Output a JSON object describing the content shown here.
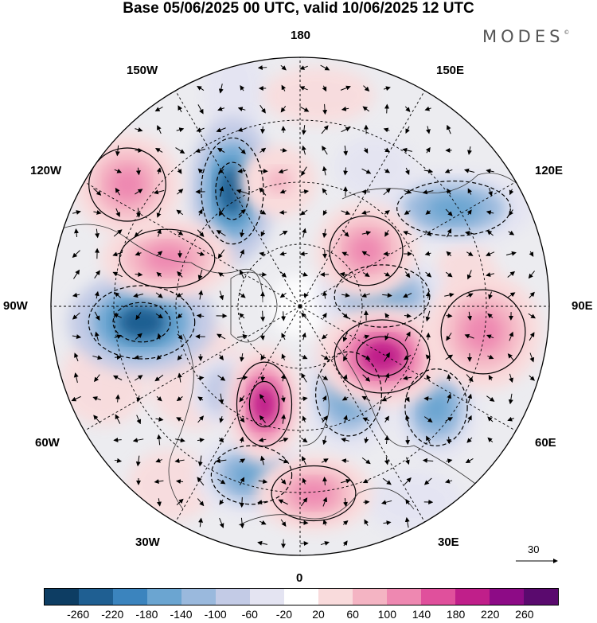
{
  "title": "Base 05/06/2025 00 UTC, valid 10/06/2025 12 UTC",
  "brand": "MODES",
  "brand_mark": "©",
  "longitude_labels": {
    "top": "180",
    "bottom": "0",
    "left": "90W",
    "right": "90E",
    "upper_left_1": "150W",
    "upper_left_2": "120W",
    "upper_right_1": "150E",
    "upper_right_2": "120E",
    "lower_left_1": "60W",
    "lower_left_2": "30W",
    "lower_right_1": "60E",
    "lower_right_2": "30E"
  },
  "reference_vector": {
    "label": "30"
  },
  "colorbar": {
    "colors": [
      "#0d3d63",
      "#1f5f92",
      "#3b84be",
      "#6ba5d1",
      "#9ab9dd",
      "#c3cbe6",
      "#e4e4f2",
      "#ffffff",
      "#f9dbdc",
      "#f4b4c3",
      "#ee88b1",
      "#e0509c",
      "#c01f8a",
      "#8d0b86",
      "#5a0a6e"
    ],
    "tick_labels": [
      "-260",
      "-220",
      "-180",
      "-140",
      "-100",
      "-60",
      "-20",
      "20",
      "60",
      "100",
      "140",
      "180",
      "220",
      "260"
    ]
  },
  "anomaly_centers": [
    {
      "sign": "negative",
      "strength": "strong"
    },
    {
      "sign": "negative",
      "strength": "strong"
    },
    {
      "sign": "negative",
      "strength": "moderate"
    },
    {
      "sign": "negative",
      "strength": "moderate"
    },
    {
      "sign": "negative",
      "strength": "moderate"
    },
    {
      "sign": "negative",
      "strength": "moderate"
    },
    {
      "sign": "negative",
      "strength": "moderate"
    },
    {
      "sign": "negative",
      "strength": "weak"
    },
    {
      "sign": "positive",
      "strength": "strong"
    },
    {
      "sign": "positive",
      "strength": "strong"
    },
    {
      "sign": "positive",
      "strength": "moderate"
    },
    {
      "sign": "positive",
      "strength": "moderate"
    },
    {
      "sign": "positive",
      "strength": "moderate"
    },
    {
      "sign": "positive",
      "strength": "moderate"
    },
    {
      "sign": "positive",
      "strength": "moderate"
    },
    {
      "sign": "positive",
      "strength": "weak"
    }
  ]
}
